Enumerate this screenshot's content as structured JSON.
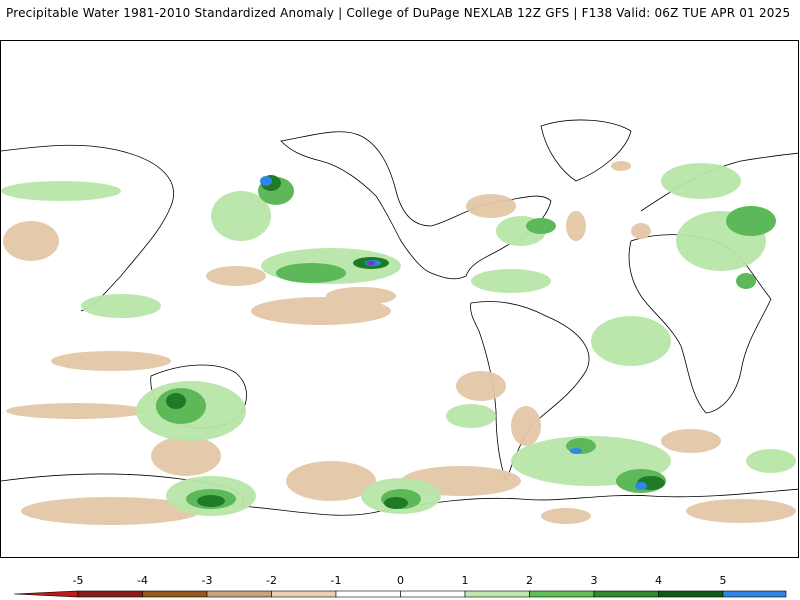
{
  "header": {
    "title": "Precipitable Water 1981-2010 Standardized Anomaly | College of DuPage NEXLAB   12Z GFS | F138 Valid: 06Z TUE APR 01 2025"
  },
  "map": {
    "product": "Precipitable Water Standardized Anomaly",
    "model": "GFS",
    "projection": "global cylindrical"
  },
  "colorbar": {
    "tick_labels": [
      "-5",
      "-4",
      "-3",
      "-2",
      "-1",
      "0",
      "1",
      "2",
      "3",
      "4",
      "5"
    ],
    "bins": [
      {
        "color": "#c0191a"
      },
      {
        "color": "#8c1a17"
      },
      {
        "color": "#94591a"
      },
      {
        "color": "#c9a37a"
      },
      {
        "color": "#e8cfb6"
      },
      {
        "color": "#ffffff"
      },
      {
        "color": "#ffffff"
      },
      {
        "color": "#bfe7b0"
      },
      {
        "color": "#5fbf55"
      },
      {
        "color": "#2e8c2e"
      },
      {
        "color": "#0f5a14"
      },
      {
        "color": "#2f86e8"
      },
      {
        "color": "#7d2fd0"
      }
    ]
  },
  "colors": {
    "positive_light": "#b8e6a8",
    "positive_mid": "#5db85a",
    "positive_dark": "#1f7a26",
    "positive_extreme": "#2f86e8",
    "negative_light": "#e3c7a7",
    "negative_mid": "#c9a37a",
    "coastline": "#000000"
  }
}
